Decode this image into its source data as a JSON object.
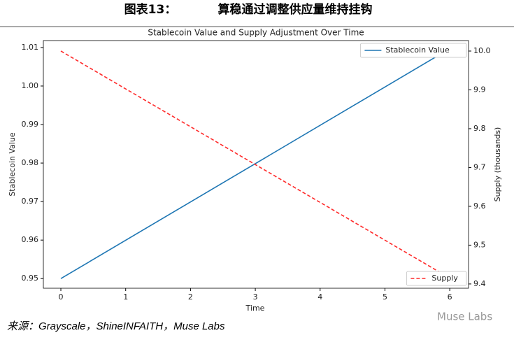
{
  "header": {
    "figure": "图表13：",
    "title": "算稳通过调整供应量维持挂钩"
  },
  "chart_data": {
    "type": "line",
    "title": "Stablecoin Value and Supply Adjustment Over Time",
    "x_label": "Time",
    "y_label": "Stablecoin Value",
    "y2_label": "Supply (thousands)",
    "x": [
      0,
      5.9
    ],
    "series": [
      {
        "name": "Stablecoin Value",
        "color": "#1f77b4",
        "values": [
          0.95,
          1.0087
        ],
        "dash": false,
        "legend": "upper right"
      },
      {
        "name": "Supply",
        "color": "#ff2a2a",
        "values": [
          10.0,
          9.425
        ],
        "axis": "y2",
        "dash": true,
        "legend": "lower right"
      }
    ],
    "xlim": [
      -0.27,
      6.29
    ],
    "xticks": [
      0,
      1,
      2,
      3,
      4,
      5,
      6
    ],
    "ylim": [
      0.9475,
      1.0118
    ],
    "yticks": [
      0.95,
      0.96,
      0.97,
      0.98,
      0.99,
      {
        "value": 1.0,
        "label": "1.00"
      },
      1.01
    ],
    "y2lim": [
      9.389,
      10.027
    ],
    "y2ticks": [
      9.4,
      9.5,
      9.6,
      9.7,
      9.8,
      9.9,
      {
        "value": 10.0,
        "label": "10.0"
      }
    ]
  },
  "footer": {
    "source": "来源：Grayscale，ShineINFAITH，Muse Labs",
    "watermark": "Muse Labs"
  }
}
